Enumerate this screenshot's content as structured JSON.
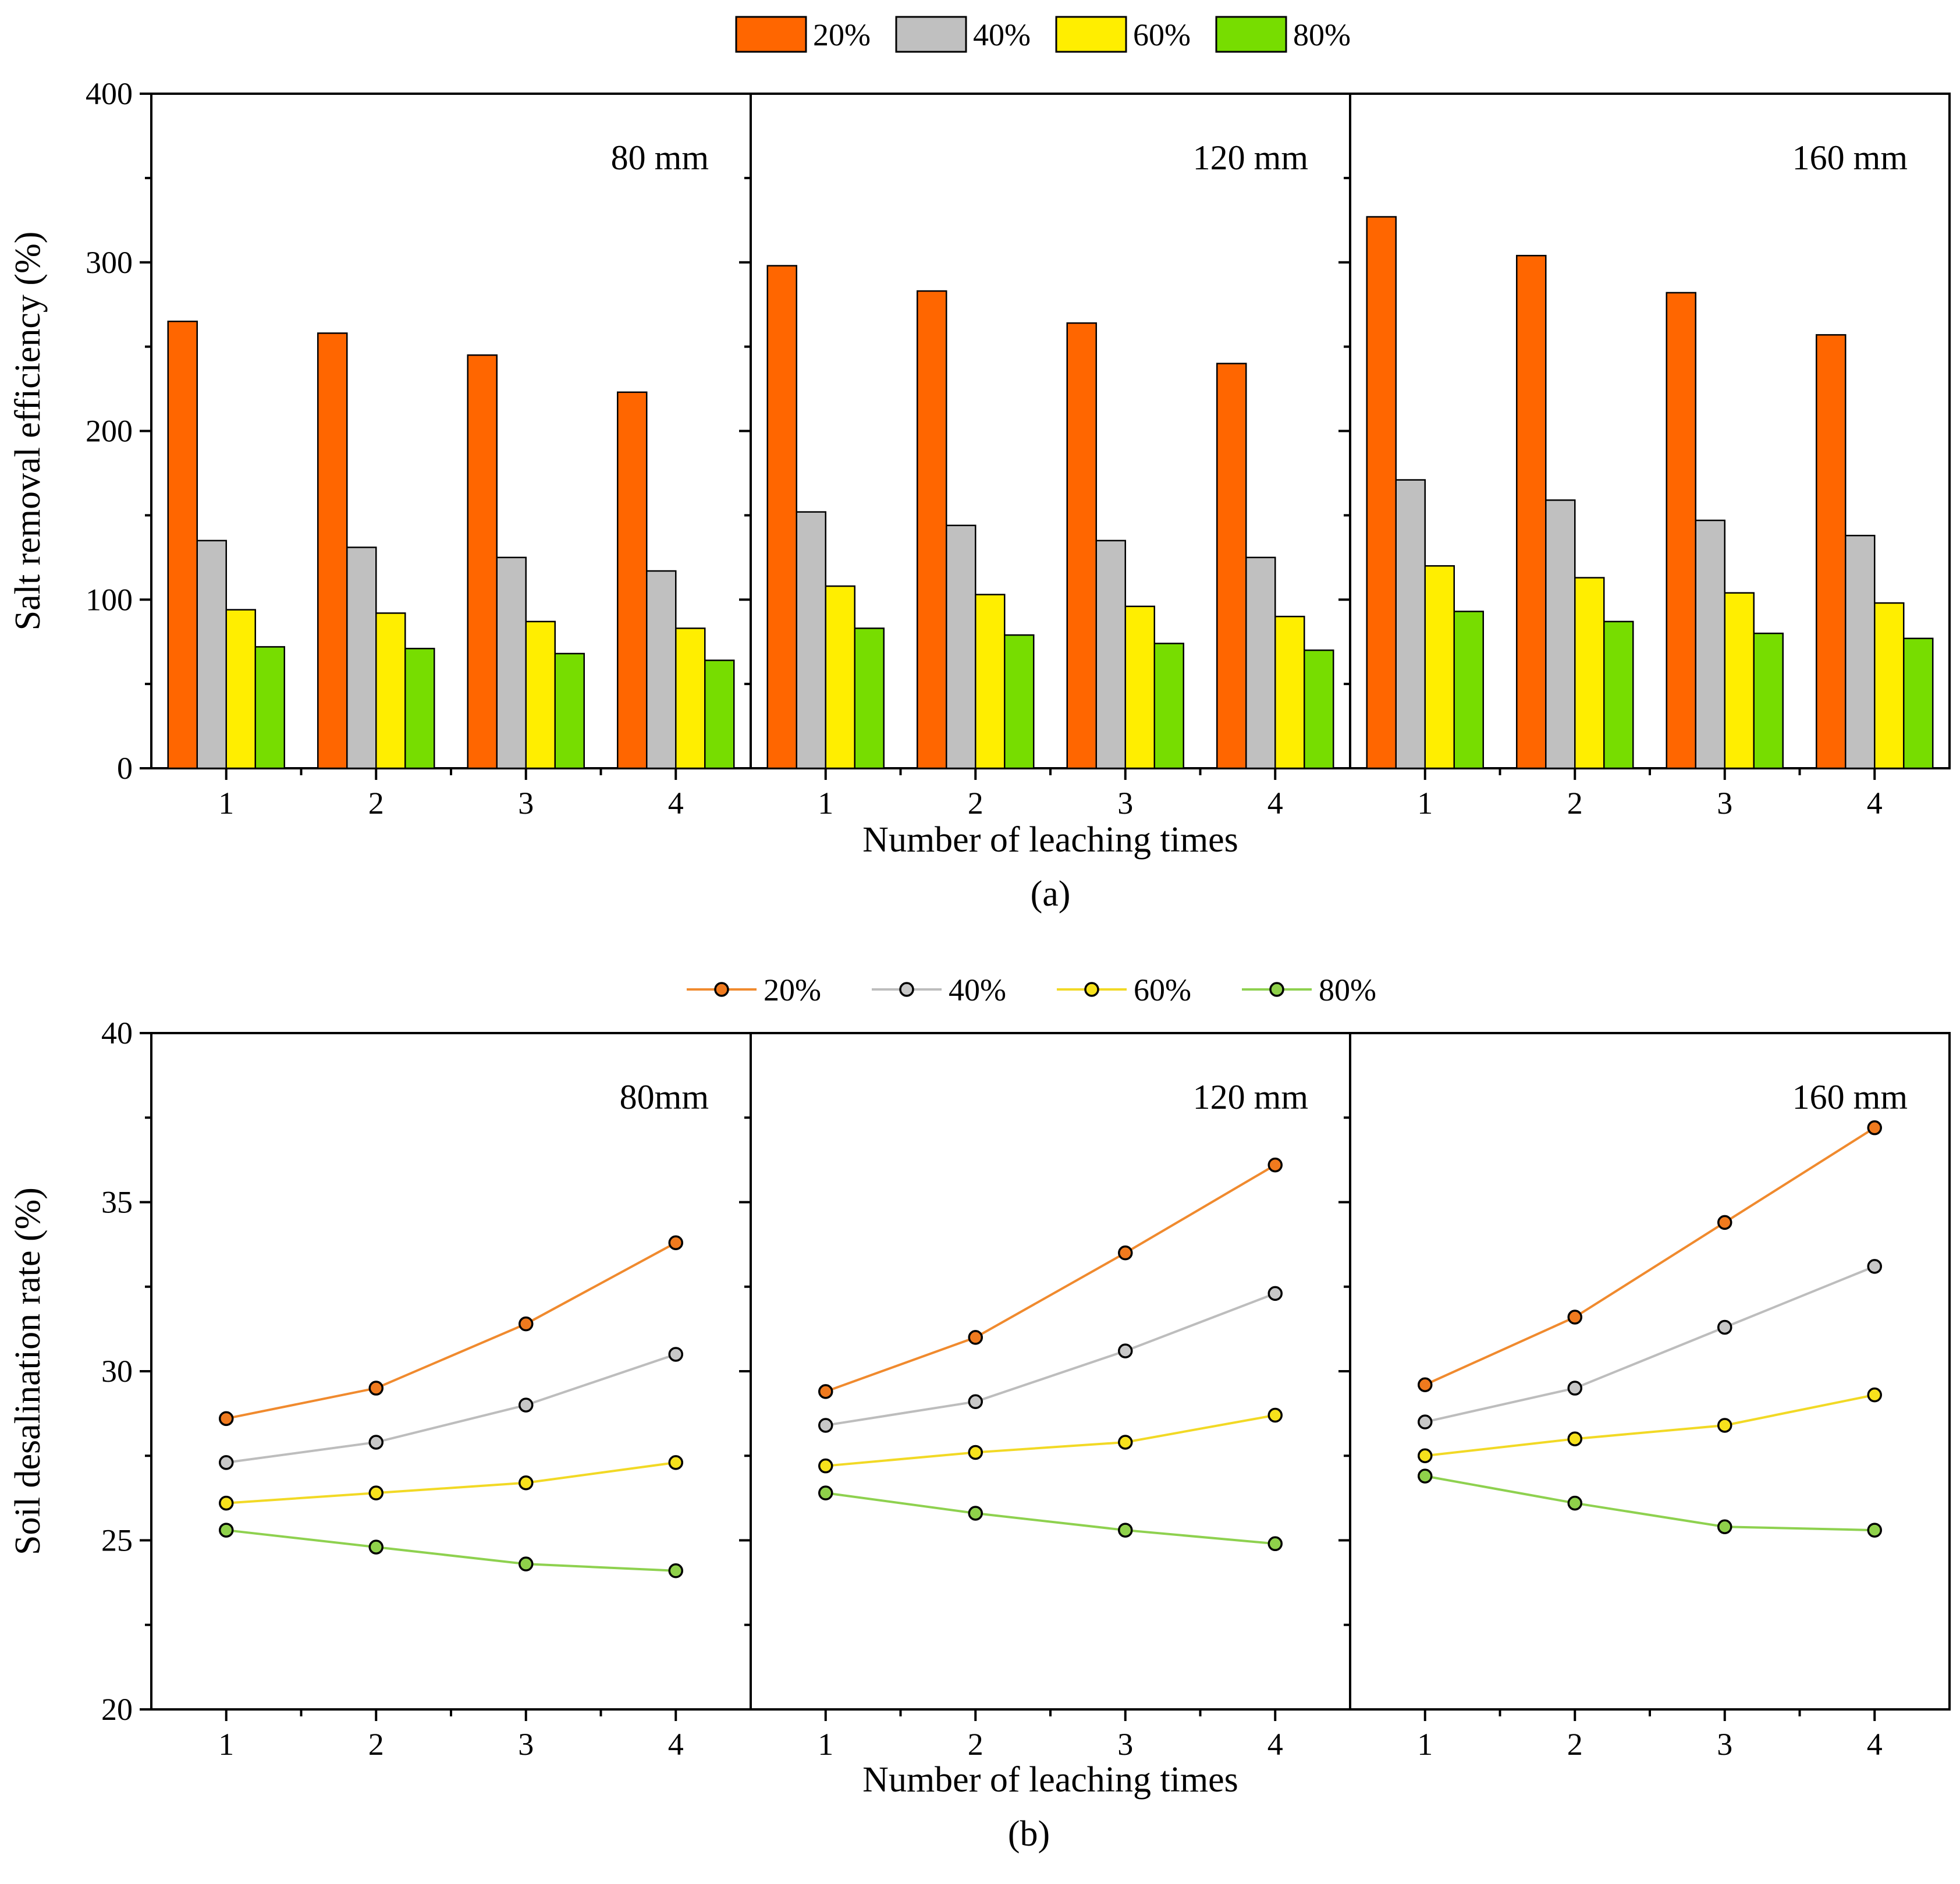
{
  "chart_data": [
    {
      "id": "a",
      "type": "bar",
      "panel_label": "(a)",
      "ylabel": "Salt removal efficiency (%)",
      "xlabel": "Number of leaching times",
      "ylim": [
        0,
        400
      ],
      "yticks": [
        0,
        100,
        200,
        300,
        400
      ],
      "categories": [
        "1",
        "2",
        "3",
        "4"
      ],
      "legend": [
        "20%",
        "40%",
        "60%",
        "80%"
      ],
      "colors": [
        "#FF6600",
        "#C0C0C0",
        "#FFEE00",
        "#77DD00"
      ],
      "panels": [
        {
          "title": "80 mm",
          "series": [
            {
              "name": "20%",
              "values": [
                265,
                258,
                245,
                223
              ]
            },
            {
              "name": "40%",
              "values": [
                135,
                131,
                125,
                117
              ]
            },
            {
              "name": "60%",
              "values": [
                94,
                92,
                87,
                83
              ]
            },
            {
              "name": "80%",
              "values": [
                72,
                71,
                68,
                64
              ]
            }
          ]
        },
        {
          "title": "120 mm",
          "series": [
            {
              "name": "20%",
              "values": [
                298,
                283,
                264,
                240
              ]
            },
            {
              "name": "40%",
              "values": [
                152,
                144,
                135,
                125
              ]
            },
            {
              "name": "60%",
              "values": [
                108,
                103,
                96,
                90
              ]
            },
            {
              "name": "80%",
              "values": [
                83,
                79,
                74,
                70
              ]
            }
          ]
        },
        {
          "title": "160 mm",
          "series": [
            {
              "name": "20%",
              "values": [
                327,
                304,
                282,
                257
              ]
            },
            {
              "name": "40%",
              "values": [
                171,
                159,
                147,
                138
              ]
            },
            {
              "name": "60%",
              "values": [
                120,
                113,
                104,
                98
              ]
            },
            {
              "name": "80%",
              "values": [
                93,
                87,
                80,
                77
              ]
            }
          ]
        }
      ]
    },
    {
      "id": "b",
      "type": "line",
      "panel_label": "(b)",
      "ylabel": "Soil desalination rate (%)",
      "xlabel": "Number of leaching times",
      "ylim": [
        20,
        40
      ],
      "yticks": [
        20,
        25,
        30,
        35,
        40
      ],
      "categories": [
        "1",
        "2",
        "3",
        "4"
      ],
      "legend": [
        "20%",
        "40%",
        "60%",
        "80%"
      ],
      "line_colors": [
        "#F08A2E",
        "#BDBDBD",
        "#F2D925",
        "#8ED14F"
      ],
      "marker_colors": [
        "#F07A1E",
        "#C8C8C8",
        "#F7E21C",
        "#8FD14A"
      ],
      "panels": [
        {
          "title": "80mm",
          "series": [
            {
              "name": "20%",
              "values": [
                28.6,
                29.5,
                31.4,
                33.8
              ]
            },
            {
              "name": "40%",
              "values": [
                27.3,
                27.9,
                29.0,
                30.5
              ]
            },
            {
              "name": "60%",
              "values": [
                26.1,
                26.4,
                26.7,
                27.3
              ]
            },
            {
              "name": "80%",
              "values": [
                25.3,
                24.8,
                24.3,
                24.1
              ]
            }
          ]
        },
        {
          "title": "120 mm",
          "series": [
            {
              "name": "20%",
              "values": [
                29.4,
                31.0,
                33.5,
                36.1
              ]
            },
            {
              "name": "40%",
              "values": [
                28.4,
                29.1,
                30.6,
                32.3
              ]
            },
            {
              "name": "60%",
              "values": [
                27.2,
                27.6,
                27.9,
                28.7
              ]
            },
            {
              "name": "80%",
              "values": [
                26.4,
                25.8,
                25.3,
                24.9
              ]
            }
          ]
        },
        {
          "title": "160 mm",
          "series": [
            {
              "name": "20%",
              "values": [
                29.6,
                31.6,
                34.4,
                37.2
              ]
            },
            {
              "name": "40%",
              "values": [
                28.5,
                29.5,
                31.3,
                33.1
              ]
            },
            {
              "name": "60%",
              "values": [
                27.5,
                28.0,
                28.4,
                29.3
              ]
            },
            {
              "name": "80%",
              "values": [
                26.9,
                26.1,
                25.4,
                25.3
              ]
            }
          ]
        }
      ]
    }
  ]
}
